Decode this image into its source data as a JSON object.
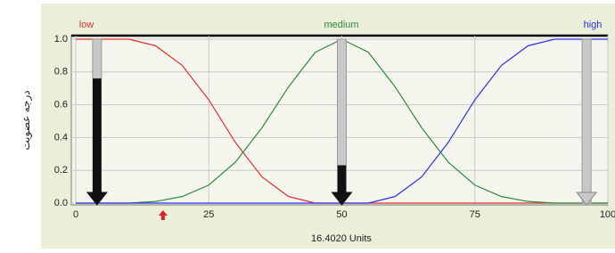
{
  "chart_data": {
    "type": "line",
    "y_label": "درجه عضویت",
    "x_label": "16.4020 Units",
    "input_value": 16.402,
    "x": [
      0,
      5,
      10,
      15,
      20,
      25,
      30,
      35,
      40,
      45,
      50,
      55,
      60,
      65,
      70,
      75,
      80,
      85,
      90,
      95,
      100
    ],
    "series": [
      {
        "name": "low",
        "color": "#e03030",
        "values": [
          1,
          1,
          1,
          0.96,
          0.84,
          0.63,
          0.37,
          0.16,
          0.04,
          0,
          0,
          0,
          0,
          0,
          0,
          0,
          0,
          0,
          0,
          0,
          0
        ]
      },
      {
        "name": "medium",
        "color": "#2e8b3e",
        "values": [
          0,
          0,
          0,
          0.01,
          0.04,
          0.11,
          0.25,
          0.46,
          0.71,
          0.92,
          1,
          0.92,
          0.71,
          0.46,
          0.25,
          0.11,
          0.04,
          0.01,
          0,
          0,
          0
        ]
      },
      {
        "name": "high",
        "color": "#3030e0",
        "values": [
          0,
          0,
          0,
          0,
          0,
          0,
          0,
          0,
          0,
          0,
          0,
          0,
          0.04,
          0.16,
          0.37,
          0.63,
          0.84,
          0.96,
          1,
          1,
          1
        ]
      }
    ],
    "arrows": [
      {
        "x": 4,
        "value": 0.76
      },
      {
        "x": 50,
        "value": 0.23
      },
      {
        "x": 96,
        "value": 0
      }
    ],
    "xlim": [
      0,
      100
    ],
    "xticks": [
      0,
      25,
      50,
      75,
      100
    ],
    "ylim": [
      0,
      1
    ],
    "yticks": [
      {
        "value": 0,
        "label": "0.0"
      },
      0.2,
      0.4,
      0.6,
      0.8,
      {
        "value": 1,
        "label": "1.0"
      }
    ],
    "grid": true
  }
}
